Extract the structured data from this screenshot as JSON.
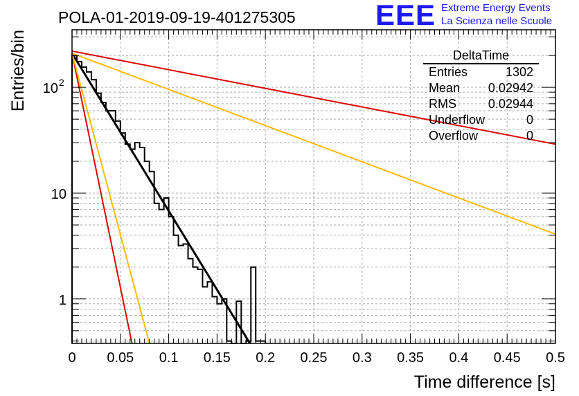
{
  "header": {
    "title": "POLA-01-2019-09-19-401275305",
    "logo_text": "EEE",
    "logo_line1": "Extreme Energy Events",
    "logo_line2": "La Scienza nelle Scuole"
  },
  "stats": {
    "name": "DeltaTime",
    "rows": [
      {
        "label": "Entries",
        "value": "1302"
      },
      {
        "label": "Mean",
        "value": "0.02942"
      },
      {
        "label": "RMS",
        "value": "0.02944"
      },
      {
        "label": "Underflow",
        "value": "0"
      },
      {
        "label": "Overflow",
        "value": "0"
      }
    ]
  },
  "colors": {
    "histogram": "#000000",
    "fit": "#000000",
    "red": "#dd0000",
    "yellow": "#ffbb00",
    "grid": "#aaaaaa"
  },
  "chart_data": {
    "type": "line",
    "xlabel": "Time difference [s]",
    "ylabel": "Entries/bin",
    "xlim": [
      0,
      0.5
    ],
    "ylim": [
      0.38,
      350
    ],
    "y_scale": "log",
    "grid": true,
    "x_ticks": [
      "0",
      "0.05",
      "0.1",
      "0.15",
      "0.2",
      "0.25",
      "0.3",
      "0.35",
      "0.4",
      "0.45",
      "0.5"
    ],
    "y_ticks": [
      {
        "value": 1,
        "label": "1"
      },
      {
        "value": 10,
        "label": "10"
      },
      {
        "value": 100,
        "label": "10",
        "sup": "2"
      }
    ],
    "histogram": {
      "bin_width": 0.005,
      "values": [
        200,
        175,
        155,
        140,
        118,
        88,
        72,
        60,
        60,
        48,
        37,
        29,
        26,
        30,
        27,
        20,
        16,
        8,
        7,
        9,
        6,
        4,
        3.2,
        3.3,
        2.4,
        2.0,
        1.9,
        1.3,
        1.45,
        1.05,
        0.9,
        1.0,
        0.4,
        0.37,
        0.95,
        0.38,
        0.4,
        2.0,
        0.4,
        0.4
      ]
    },
    "lines": [
      {
        "color": "black",
        "y0": 210,
        "x_end": 0.184,
        "y_end": 0.38
      },
      {
        "color": "red",
        "y0": 220,
        "x_end": 0.5,
        "y_end": 29
      },
      {
        "color": "yellow",
        "y0": 210,
        "x_end": 0.5,
        "y_end": 4.1
      },
      {
        "color": "red",
        "y0": 210,
        "x_end": 0.062,
        "y_end": 0.38
      },
      {
        "color": "yellow",
        "y0": 210,
        "x_end": 0.08,
        "y_end": 0.38
      }
    ]
  }
}
